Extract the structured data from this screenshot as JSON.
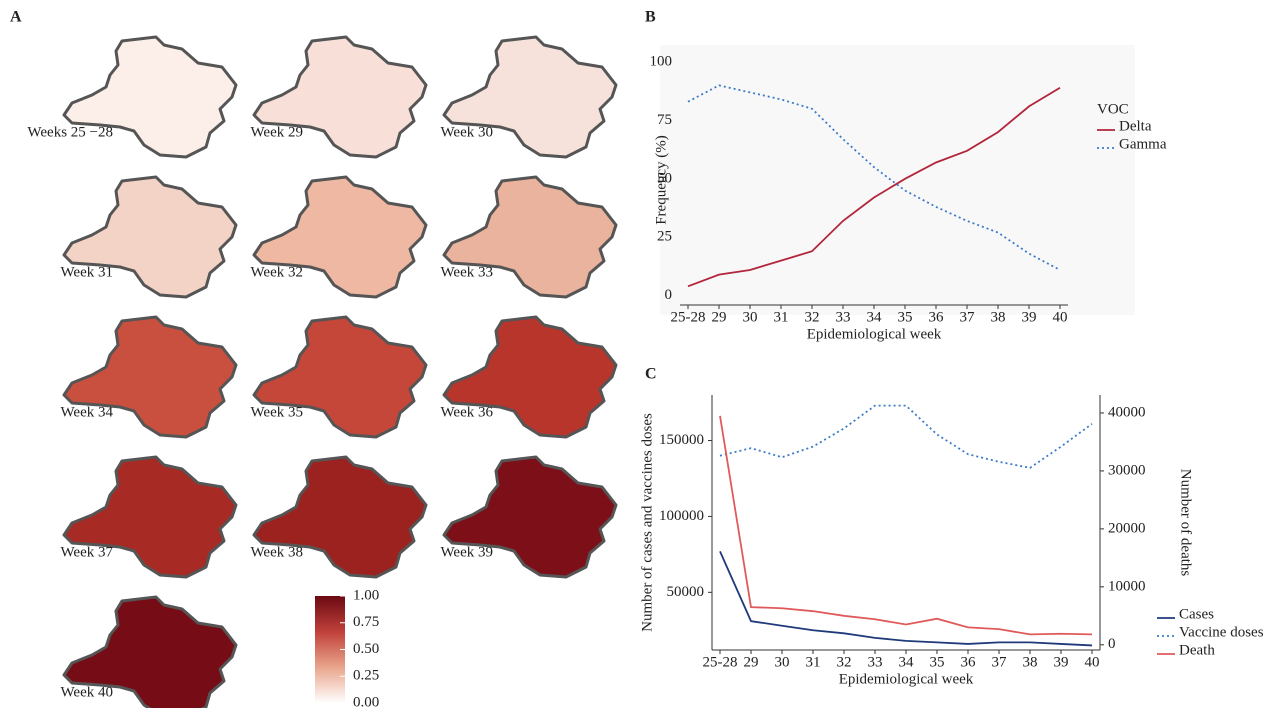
{
  "chart_data": [
    {
      "type": "map-grid",
      "label": "A",
      "maps": [
        {
          "label": "Weeks 25 −28",
          "color": "#fcefe9"
        },
        {
          "label": "Week 29",
          "color": "#f8e0d8"
        },
        {
          "label": "Week 30",
          "color": "#f6e2da"
        },
        {
          "label": "Week 31",
          "color": "#f3d3c6"
        },
        {
          "label": "Week 32",
          "color": "#eeb8a3"
        },
        {
          "label": "Week 33",
          "color": "#eab39d"
        },
        {
          "label": "Week 34",
          "color": "#c9503e"
        },
        {
          "label": "Week 35",
          "color": "#c4473a"
        },
        {
          "label": "Week 36",
          "color": "#b8352c"
        },
        {
          "label": "Week 37",
          "color": "#a82a24"
        },
        {
          "label": "Week 38",
          "color": "#9c2220"
        },
        {
          "label": "Week 39",
          "color": "#7c0f17"
        },
        {
          "label": "Week 40",
          "color": "#760d16"
        }
      ],
      "colorbar": {
        "lim": [
          0,
          1
        ],
        "colors": [
          "#ffffff",
          "#e9a58c",
          "#c0403a",
          "#6b0a13"
        ],
        "ticks": [
          {
            "value": 0,
            "label": "0.00"
          },
          {
            "value": 0.25,
            "label": "0.25"
          },
          {
            "value": 0.5,
            "label": "0.50"
          },
          {
            "value": 0.75,
            "label": "0.75"
          },
          {
            "value": 1,
            "label": "1.00"
          }
        ]
      }
    },
    {
      "type": "line",
      "label": "B",
      "xlabel": "Epidemiological week",
      "ylabel": "Frequency (%)",
      "categories": [
        "25-28",
        "29",
        "30",
        "31",
        "32",
        "33",
        "34",
        "35",
        "36",
        "37",
        "38",
        "39",
        "40"
      ],
      "ylim": [
        -4,
        103
      ],
      "yticks": [
        0,
        25,
        50,
        75,
        100
      ],
      "legend_title": "VOC",
      "series": [
        {
          "name": "Delta",
          "color": "#b2253a",
          "dash": "solid",
          "values": [
            4,
            9,
            11,
            15,
            19,
            32,
            42,
            50,
            57,
            62,
            70,
            81,
            89
          ]
        },
        {
          "name": "Gamma",
          "color": "#3a7bc8",
          "dash": "dotted",
          "values": [
            83,
            90,
            87,
            84,
            80,
            67,
            55,
            45,
            38,
            32,
            27,
            18,
            11
          ]
        }
      ]
    },
    {
      "type": "line",
      "label": "C",
      "xlabel": "Epidemiological week",
      "ylabel": "Number of cases and vaccines doses",
      "y2label": "Number of deaths",
      "categories": [
        "25-28",
        "29",
        "30",
        "31",
        "32",
        "33",
        "34",
        "35",
        "36",
        "37",
        "38",
        "39",
        "40"
      ],
      "ylim": [
        12000,
        180000
      ],
      "yticks": [
        50000,
        100000,
        150000
      ],
      "y2lim": [
        -900,
        43100
      ],
      "y2ticks": [
        0,
        10000,
        20000,
        30000,
        40000
      ],
      "series": [
        {
          "name": "Cases",
          "color": "#1f3a7a",
          "dash": "solid",
          "values": [
            77000,
            31000,
            28000,
            25000,
            23000,
            20000,
            18000,
            17000,
            16000,
            17000,
            17000,
            16000,
            15000
          ]
        },
        {
          "name": "Vaccine doses",
          "color": "#3a7bc8",
          "dash": "dotted",
          "values": [
            140000,
            145000,
            139000,
            146000,
            158000,
            173000,
            173000,
            154000,
            141000,
            136000,
            132000,
            146000,
            161000
          ]
        },
        {
          "name": "Death",
          "color": "#e05a5a",
          "dash": "solid",
          "axis": "y2",
          "values": [
            39500,
            6500,
            6300,
            5800,
            5000,
            4400,
            3500,
            4500,
            3000,
            2700,
            1800,
            1900,
            1800
          ]
        }
      ]
    }
  ]
}
